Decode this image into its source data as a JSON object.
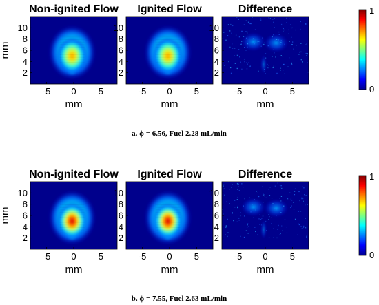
{
  "figure": {
    "rows": [
      {
        "caption": "a. ϕ = 6.56, Fuel 2.28 mL/min",
        "panels": [
          {
            "title": "Non-ignited Flow",
            "kind": "flow",
            "intensity": 0.85
          },
          {
            "title": "Ignited Flow",
            "kind": "flow",
            "intensity": 0.78
          },
          {
            "title": "Difference",
            "kind": "difference",
            "intensity": 0.35
          }
        ]
      },
      {
        "caption": "b. ϕ = 7.55, Fuel 2.63 mL/min",
        "panels": [
          {
            "title": "Non-ignited Flow",
            "kind": "flow",
            "intensity": 1.0
          },
          {
            "title": "Ignited Flow",
            "kind": "flow",
            "intensity": 1.0
          },
          {
            "title": "Difference",
            "kind": "difference",
            "intensity": 0.3
          }
        ]
      }
    ],
    "x_axis": {
      "label": "mm",
      "ticks": [
        "-5",
        "0",
        "5"
      ],
      "range": [
        -8,
        8
      ]
    },
    "y_axis": {
      "label": "mm",
      "ticks": [
        "2",
        "4",
        "6",
        "8",
        "10"
      ],
      "range": [
        0,
        12
      ]
    },
    "colorbar": {
      "min_label": "0",
      "max_label": "1",
      "colormap": "jet"
    }
  }
}
